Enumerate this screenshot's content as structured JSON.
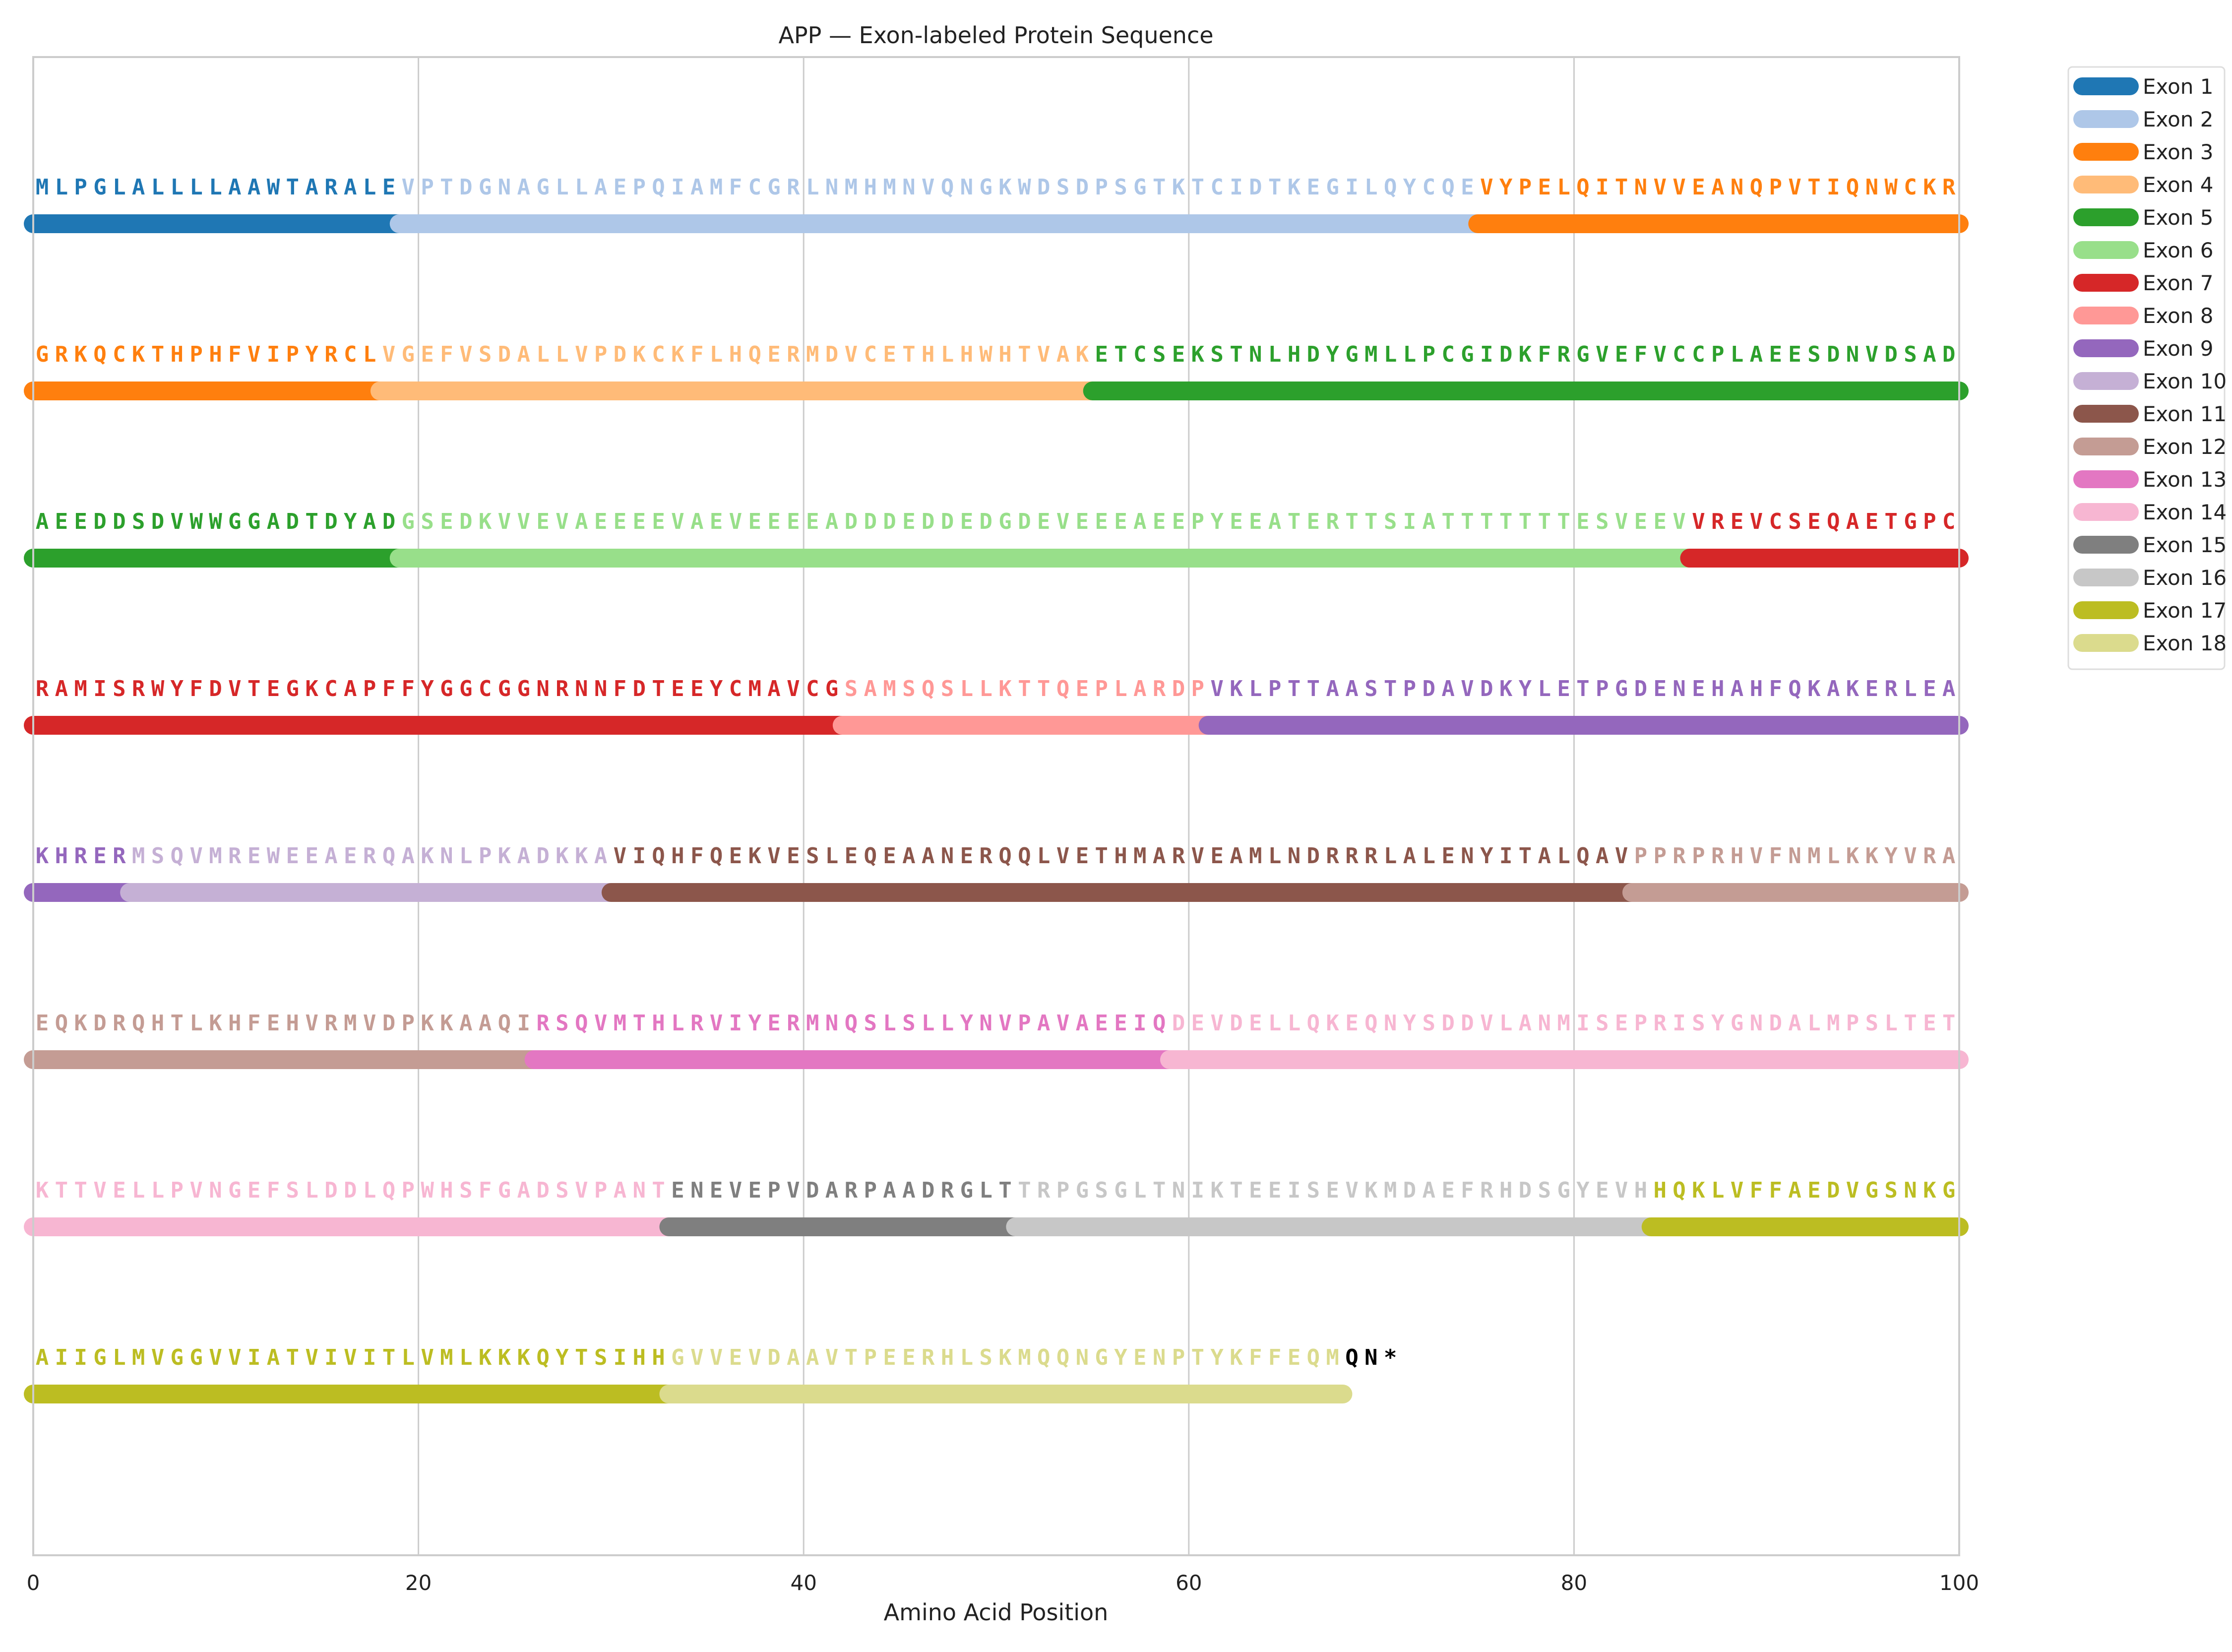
{
  "chart_data": {
    "type": "sequence-track",
    "title": "APP — Exon-labeled Protein Sequence",
    "xlabel": "Amino Acid Position",
    "ylabel": "",
    "xlim": [
      0,
      100
    ],
    "xticks": [
      0,
      20,
      40,
      60,
      80,
      100
    ],
    "grid": true,
    "legend_position": "top-right outside",
    "residues_per_row": 100,
    "sequence": "MLPGLALLLLAAWTARALEVPTDGNAGLLAEPQIAMFCGRLNMHMNVQNGKWDSDPSGTKTCIDTKEGILQYCQEVYPELQITNVVEANQPVTIQNWCKRGRKQCKTHPHFVIPYRCLVGEFVSDALLVPDKCKFLHQERMDVCETHLHWHTVAKETCSEKSTNLHDYGMLLPCGIDKFRGVEFVCCPLAEESDNVDSADAEEDDSDVWWGGADTDYADGSEDKVVEVAEEEEVAEVEEEEADDDEDDEDGDEVEEEAEEPYEEATERTTSIATTTTTTTESVEEVVREVCSEQAETGPCRAMISRWYFDVTEGKCAPFFYGGCGGNRNNFDTEEYCMAVCGSAMSQSLLKTTQEPLARDPVKLPTTAASTPDAVDKYLETPGDENEHAHFQKAKERLEAKHRERMSQVMREWEEAERQAKNLPKADKKAVIQHFQEKVESLEQEAANERQQLVETHMARVEAMLNDRRRLALENYITALQAVPPRPRHVFNMLKKYVRAEQKDRQHTLKHFEHVRMVDPKKAAQIRSQVMTHLRVIYERMNQSLSLLYNVPAVAEEIQDEVDELLQKEQNYSDDVLANMISEPRISYGNDALMPSLTETKTTVELLPVNGEFSLDDLQPWHSFGADSVPANTENEVEPVDARPAADRGLTTRPGSGLTNIKTEEISEVKMDAEFRHDSGYEVHHQKLVFFAEDVGSNKGAIIGLMVGGVVIATVIVITLVMLKKKQYTSIHHGVVEVDAAVTPEERHLSKMQQNGYENPTYKFFEQMQN*",
    "exons": [
      {
        "name": "Exon 1",
        "color": "#1f77b4",
        "start": 0,
        "end": 19
      },
      {
        "name": "Exon 2",
        "color": "#aec7e8",
        "start": 19,
        "end": 75
      },
      {
        "name": "Exon 3",
        "color": "#ff7f0e",
        "start": 75,
        "end": 118
      },
      {
        "name": "Exon 4",
        "color": "#ffbb78",
        "start": 118,
        "end": 155
      },
      {
        "name": "Exon 5",
        "color": "#2ca02c",
        "start": 155,
        "end": 219
      },
      {
        "name": "Exon 6",
        "color": "#98df8a",
        "start": 219,
        "end": 286
      },
      {
        "name": "Exon 7",
        "color": "#d62728",
        "start": 286,
        "end": 342
      },
      {
        "name": "Exon 8",
        "color": "#ff9896",
        "start": 342,
        "end": 361
      },
      {
        "name": "Exon 9",
        "color": "#9467bd",
        "start": 361,
        "end": 405
      },
      {
        "name": "Exon 10",
        "color": "#c5b0d5",
        "start": 405,
        "end": 430
      },
      {
        "name": "Exon 11",
        "color": "#8c564b",
        "start": 430,
        "end": 483
      },
      {
        "name": "Exon 12",
        "color": "#c49c94",
        "start": 483,
        "end": 526
      },
      {
        "name": "Exon 13",
        "color": "#e377c2",
        "start": 526,
        "end": 559
      },
      {
        "name": "Exon 14",
        "color": "#f7b6d2",
        "start": 559,
        "end": 633
      },
      {
        "name": "Exon 15",
        "color": "#7f7f7f",
        "start": 633,
        "end": 651
      },
      {
        "name": "Exon 16",
        "color": "#c7c7c7",
        "start": 651,
        "end": 684
      },
      {
        "name": "Exon 17",
        "color": "#bcbd22",
        "start": 684,
        "end": 733
      },
      {
        "name": "Exon 18",
        "color": "#dbdb8d",
        "start": 733,
        "end": 768
      }
    ],
    "unassigned_color": "#000000"
  }
}
